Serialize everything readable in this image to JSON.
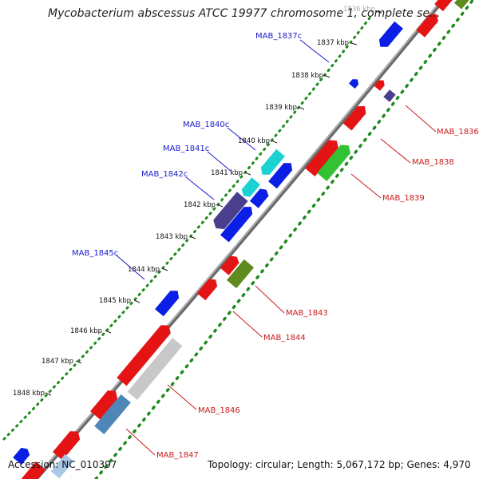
{
  "header": {
    "title": "Mycobacterium abscessus ATCC 19977 chromosome 1, complete se..."
  },
  "footer": {
    "accession": "Accession: NC_010397",
    "summary": "Topology: circular; Length: 5,067,172 bp; Genes: 4,970"
  },
  "ticks": [
    "1836 kbp",
    "1837 kbp",
    "1838 kbp",
    "1839 kbp",
    "1840 kbp",
    "1841 kbp",
    "1842 kbp",
    "1843 kbp",
    "1844 kbp",
    "1845 kbp",
    "1846 kbp",
    "1847 kbp",
    "1848 kbp"
  ],
  "gene_labels": {
    "MAB_1837c": "MAB_1837c",
    "MAB_1840c": "MAB_1840c",
    "MAB_1841c": "MAB_1841c",
    "MAB_1842c": "MAB_1842c",
    "MAB_1845c": "MAB_1845c",
    "MAB_1836": "MAB_1836",
    "MAB_1838": "MAB_1838",
    "MAB_1839": "MAB_1839",
    "MAB_1843": "MAB_1843",
    "MAB_1844": "MAB_1844",
    "MAB_1846": "MAB_1846",
    "MAB_1847": "MAB_1847"
  },
  "colors": {
    "backbone": "#8a8a8a",
    "gc_dots": "#1e8a1e",
    "forward_red": "#e41414",
    "reverse_blue": "#0a1ee6",
    "cyan": "#1ad2d2",
    "indigo": "#4a3f8c",
    "green": "#33c233",
    "olive": "#5f8a1e",
    "steel": "#4f86b8",
    "grey_gene": "#c8c8c8",
    "label_left": "#1a1acc",
    "label_right": "#cc1a1a"
  }
}
